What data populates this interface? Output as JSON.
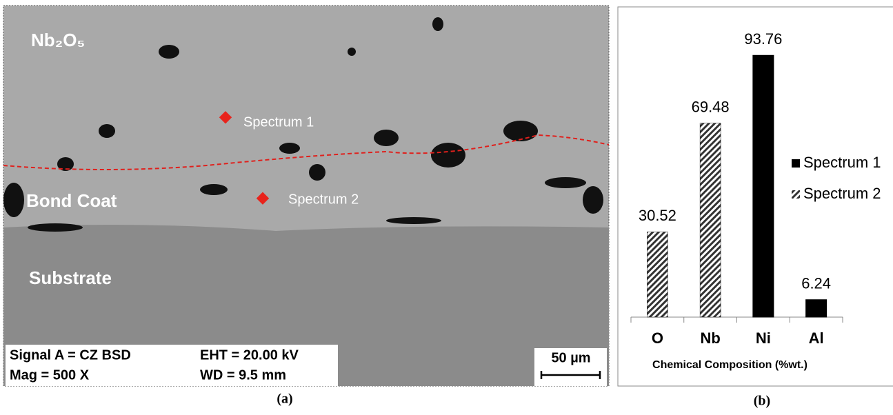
{
  "panel_a": {
    "layer_top": "Nb₂O₅",
    "layer_mid": "Bond Coat",
    "layer_bottom": "Substrate",
    "points": [
      "Spectrum 1",
      "Spectrum 2"
    ],
    "info": {
      "signal": "Signal A = CZ BSD",
      "eht": "EHT = 20.00 kV",
      "mag": "Mag = 500 X",
      "wd": "WD = 9.5 mm"
    },
    "scale_bar": "50 µm",
    "caption": "(a)"
  },
  "chart_data": {
    "type": "bar",
    "caption": "(b)",
    "x_label": "Chemical Composition (%wt.)",
    "categories": [
      "O",
      "Nb",
      "Ni",
      "Al"
    ],
    "series": [
      {
        "name": "Spectrum 1",
        "color": "#000000",
        "fill": "solid",
        "values": [
          null,
          null,
          93.76,
          6.24
        ]
      },
      {
        "name": "Spectrum 2",
        "color": "#000000",
        "fill": "hatch",
        "values": [
          30.52,
          69.48,
          null,
          null
        ]
      }
    ],
    "legend": "right"
  }
}
